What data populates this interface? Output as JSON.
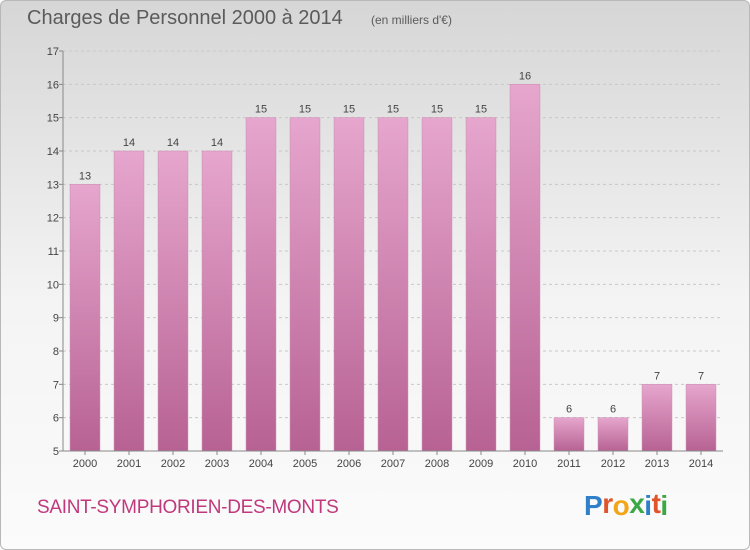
{
  "title": "Charges de Personnel 2000 à 2014",
  "subtitle": "(en milliers d'€)",
  "commune": "SAINT-SYMPHORIEN-DES-MONTS",
  "logo": {
    "text": "Proxiti",
    "letter_colors": [
      "#2f7fc9",
      "#e0542b",
      "#f2a518",
      "#3aa844",
      "#2f7fc9",
      "#e0542b",
      "#3aa844"
    ]
  },
  "colors": {
    "bar_top": "#e6a6cd",
    "bar_bottom": "#b76293",
    "title": "#5b5b5b",
    "commune": "#c0397d"
  },
  "chart_data": {
    "type": "bar",
    "title": "Charges de Personnel 2000 à 2014",
    "subtitle": "(en milliers d'€)",
    "xlabel": "",
    "ylabel": "",
    "categories": [
      "2000",
      "2001",
      "2002",
      "2003",
      "2004",
      "2005",
      "2006",
      "2007",
      "2008",
      "2009",
      "2010",
      "2011",
      "2012",
      "2013",
      "2014"
    ],
    "values": [
      13,
      14,
      14,
      14,
      15,
      15,
      15,
      15,
      15,
      15,
      16,
      6,
      6,
      7,
      7
    ],
    "ylim": [
      5,
      17
    ],
    "yticks": [
      5,
      6,
      7,
      8,
      9,
      10,
      11,
      12,
      13,
      14,
      15,
      16,
      17
    ],
    "grid": true,
    "legend": "none"
  }
}
